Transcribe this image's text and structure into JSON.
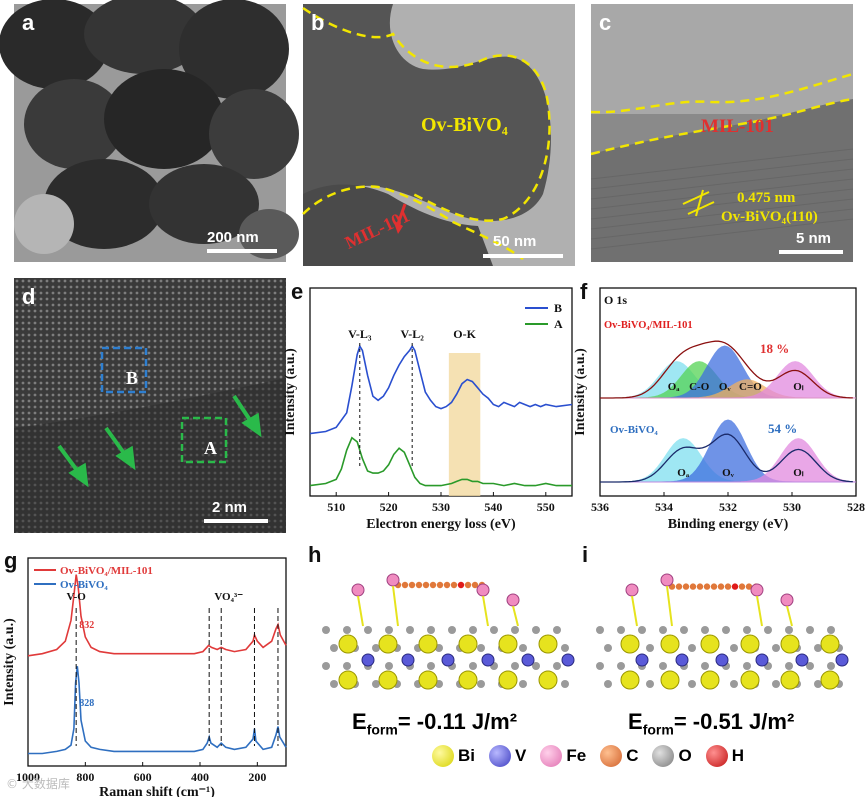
{
  "colors": {
    "yellow_dash": "#f2e600",
    "red": "#e02020",
    "blue": "#2a4fcf",
    "green": "#2a9a2a",
    "mil_red": "#e03030",
    "ovbivo4_blue": "#2f6fc0",
    "bi": "#e6e31e",
    "v": "#5a5ad8",
    "fe": "#f08cc0",
    "c": "#e0783a",
    "o": "#9a9a9a",
    "h": "#e01a1a"
  },
  "panels": {
    "a": {
      "letter": "a",
      "scale": "200 nm"
    },
    "b": {
      "letter": "b",
      "scale": "50 nm",
      "label_bivo4": "Ov-BiVO₄",
      "label_mil": "MIL-101"
    },
    "c": {
      "letter": "c",
      "scale": "5 nm",
      "label_mil": "MIL-101",
      "label_d": "0.475 nm",
      "label_plane": "Ov-BiVO₄(110)"
    },
    "d": {
      "letter": "d",
      "scale": "2 nm",
      "box_b": "B",
      "box_a": "A"
    },
    "e": {
      "letter": "e"
    },
    "f": {
      "letter": "f"
    },
    "g": {
      "letter": "g"
    },
    "h": {
      "letter": "h",
      "energy": "E",
      "energy_sub": "form",
      "energy_value": "= -0.11 J/m²"
    },
    "i": {
      "letter": "i",
      "energy": "E",
      "energy_sub": "form",
      "energy_value": "= -0.51 J/m²"
    }
  },
  "atom_legend": [
    {
      "symbol": "Bi",
      "color_key": "bi"
    },
    {
      "symbol": "V",
      "color_key": "v"
    },
    {
      "symbol": "Fe",
      "color_key": "fe"
    },
    {
      "symbol": "C",
      "color_key": "c"
    },
    {
      "symbol": "O",
      "color_key": "o"
    },
    {
      "symbol": "H",
      "color_key": "h"
    }
  ],
  "watermark": "© 大数据库",
  "chart_data": [
    {
      "id": "e",
      "type": "line",
      "xlabel": "Electron energy loss (eV)",
      "ylabel": "Intensity (a.u.)",
      "xlim": [
        505,
        555
      ],
      "xticks": [
        510,
        520,
        530,
        540,
        550
      ],
      "legend": [
        "B",
        "A"
      ],
      "legend_position": "top-right",
      "annotations": [
        "V-L₃",
        "V-L₂",
        "O-K"
      ],
      "annotation_x": [
        514.5,
        524.5,
        534.5
      ],
      "shaded_region": [
        531.5,
        537.5
      ],
      "series": [
        {
          "name": "B",
          "color": "#2a4fcf",
          "x": [
            505,
            508,
            510,
            512,
            513,
            514,
            514.5,
            515,
            516,
            517,
            518,
            519,
            520,
            521,
            522,
            523,
            524,
            524.5,
            525,
            526,
            527,
            528,
            529,
            530,
            531,
            532,
            533,
            534,
            535,
            536,
            537,
            538,
            539,
            540,
            541,
            542,
            543,
            544,
            545,
            546,
            547,
            548,
            549,
            550,
            552,
            555
          ],
          "y": [
            0.3,
            0.31,
            0.33,
            0.4,
            0.53,
            0.68,
            0.72,
            0.7,
            0.58,
            0.48,
            0.46,
            0.48,
            0.52,
            0.58,
            0.63,
            0.67,
            0.7,
            0.72,
            0.7,
            0.6,
            0.5,
            0.46,
            0.43,
            0.42,
            0.43,
            0.45,
            0.49,
            0.54,
            0.56,
            0.55,
            0.52,
            0.49,
            0.47,
            0.44,
            0.43,
            0.45,
            0.44,
            0.43,
            0.45,
            0.44,
            0.43,
            0.44,
            0.43,
            0.44,
            0.43,
            0.44
          ]
        },
        {
          "name": "A",
          "color": "#2a9a2a",
          "x": [
            505,
            508,
            510,
            511,
            512,
            513,
            514,
            515,
            516,
            517,
            518,
            519,
            520,
            521,
            522,
            523,
            524,
            525,
            526,
            527,
            528,
            530,
            532,
            533,
            534,
            535,
            536,
            537,
            538,
            540,
            542,
            544,
            546,
            548,
            550,
            552,
            555
          ],
          "y": [
            0.05,
            0.06,
            0.08,
            0.13,
            0.22,
            0.28,
            0.26,
            0.18,
            0.12,
            0.11,
            0.11,
            0.12,
            0.15,
            0.2,
            0.23,
            0.21,
            0.15,
            0.09,
            0.06,
            0.05,
            0.05,
            0.05,
            0.06,
            0.07,
            0.08,
            0.08,
            0.07,
            0.07,
            0.06,
            0.06,
            0.05,
            0.06,
            0.05,
            0.05,
            0.06,
            0.05,
            0.05
          ]
        }
      ]
    },
    {
      "id": "f",
      "type": "line",
      "title": "O 1s",
      "xlabel": "Binding energy (eV)",
      "ylabel": "Intensity (a.u.)",
      "xlim": [
        536,
        528
      ],
      "xticks": [
        536,
        534,
        532,
        530,
        528
      ],
      "labels": [
        "Ov-BiVO₄/MIL-101",
        "Ov-BiVO₄"
      ],
      "label_colors": [
        "#e02020",
        "#2f6fc0"
      ],
      "peak_labels_top": [
        "Oₐ",
        "C-O",
        "Oᵥ",
        "C=O",
        "Oₗ"
      ],
      "peak_labels_bottom": [
        "Oₐ",
        "Oᵥ",
        "Oₗ"
      ],
      "annotations": [
        "18 %",
        "54 %"
      ],
      "components": [
        {
          "group": "top",
          "label": "Oₐ",
          "center": 533.6,
          "color": "#7fe0f0"
        },
        {
          "group": "top",
          "label": "C-O",
          "center": 532.9,
          "color": "#55d455"
        },
        {
          "group": "top",
          "label": "Oᵥ",
          "center": 532.1,
          "color": "#3f6fe0"
        },
        {
          "group": "top",
          "label": "C=O",
          "center": 531.4,
          "color": "#f0b060"
        },
        {
          "group": "top",
          "label": "Oₗ",
          "center": 529.9,
          "color": "#e28ae0"
        },
        {
          "group": "bottom",
          "label": "Oₐ",
          "center": 533.4,
          "color": "#7fe0f0"
        },
        {
          "group": "bottom",
          "label": "Oᵥ",
          "center": 532.0,
          "color": "#3f6fe0"
        },
        {
          "group": "bottom",
          "label": "Oₗ",
          "center": 529.8,
          "color": "#e28ae0"
        }
      ]
    },
    {
      "id": "g",
      "type": "line",
      "xlabel": "Raman shift (cm⁻¹)",
      "ylabel": "Intensity (a.u.)",
      "xlim": [
        1000,
        100
      ],
      "xticks": [
        1000,
        800,
        600,
        400,
        200
      ],
      "annotations": [
        "V-O",
        "VO₄³⁻",
        "832",
        "828"
      ],
      "dashed_x": [
        832,
        368,
        326,
        210,
        128
      ],
      "legend_position": "top-left",
      "series": [
        {
          "name": "Ov-BiVO₄/MIL-101",
          "color": "#e03a3a",
          "x": [
            1000,
            950,
            900,
            870,
            850,
            840,
            832,
            825,
            815,
            800,
            780,
            750,
            700,
            600,
            500,
            420,
            390,
            370,
            360,
            340,
            326,
            310,
            280,
            240,
            215,
            210,
            200,
            180,
            150,
            135,
            128,
            120,
            100
          ],
          "y": [
            0.53,
            0.54,
            0.56,
            0.6,
            0.7,
            0.82,
            0.92,
            0.86,
            0.72,
            0.62,
            0.57,
            0.55,
            0.54,
            0.54,
            0.54,
            0.54,
            0.55,
            0.58,
            0.57,
            0.56,
            0.57,
            0.56,
            0.55,
            0.56,
            0.6,
            0.63,
            0.6,
            0.57,
            0.6,
            0.66,
            0.68,
            0.63,
            0.58
          ]
        },
        {
          "name": "Ov-BiVO₄",
          "color": "#2f6fc0",
          "x": [
            1000,
            950,
            900,
            870,
            850,
            840,
            834,
            828,
            822,
            815,
            800,
            780,
            750,
            700,
            600,
            500,
            420,
            390,
            375,
            368,
            362,
            340,
            326,
            310,
            280,
            240,
            215,
            210,
            205,
            180,
            150,
            135,
            128,
            122,
            100
          ],
          "y": [
            0.06,
            0.06,
            0.07,
            0.08,
            0.1,
            0.18,
            0.4,
            0.48,
            0.4,
            0.22,
            0.12,
            0.09,
            0.08,
            0.07,
            0.07,
            0.07,
            0.07,
            0.08,
            0.11,
            0.14,
            0.11,
            0.09,
            0.11,
            0.09,
            0.08,
            0.09,
            0.13,
            0.18,
            0.12,
            0.08,
            0.09,
            0.15,
            0.19,
            0.14,
            0.09
          ]
        }
      ]
    }
  ]
}
